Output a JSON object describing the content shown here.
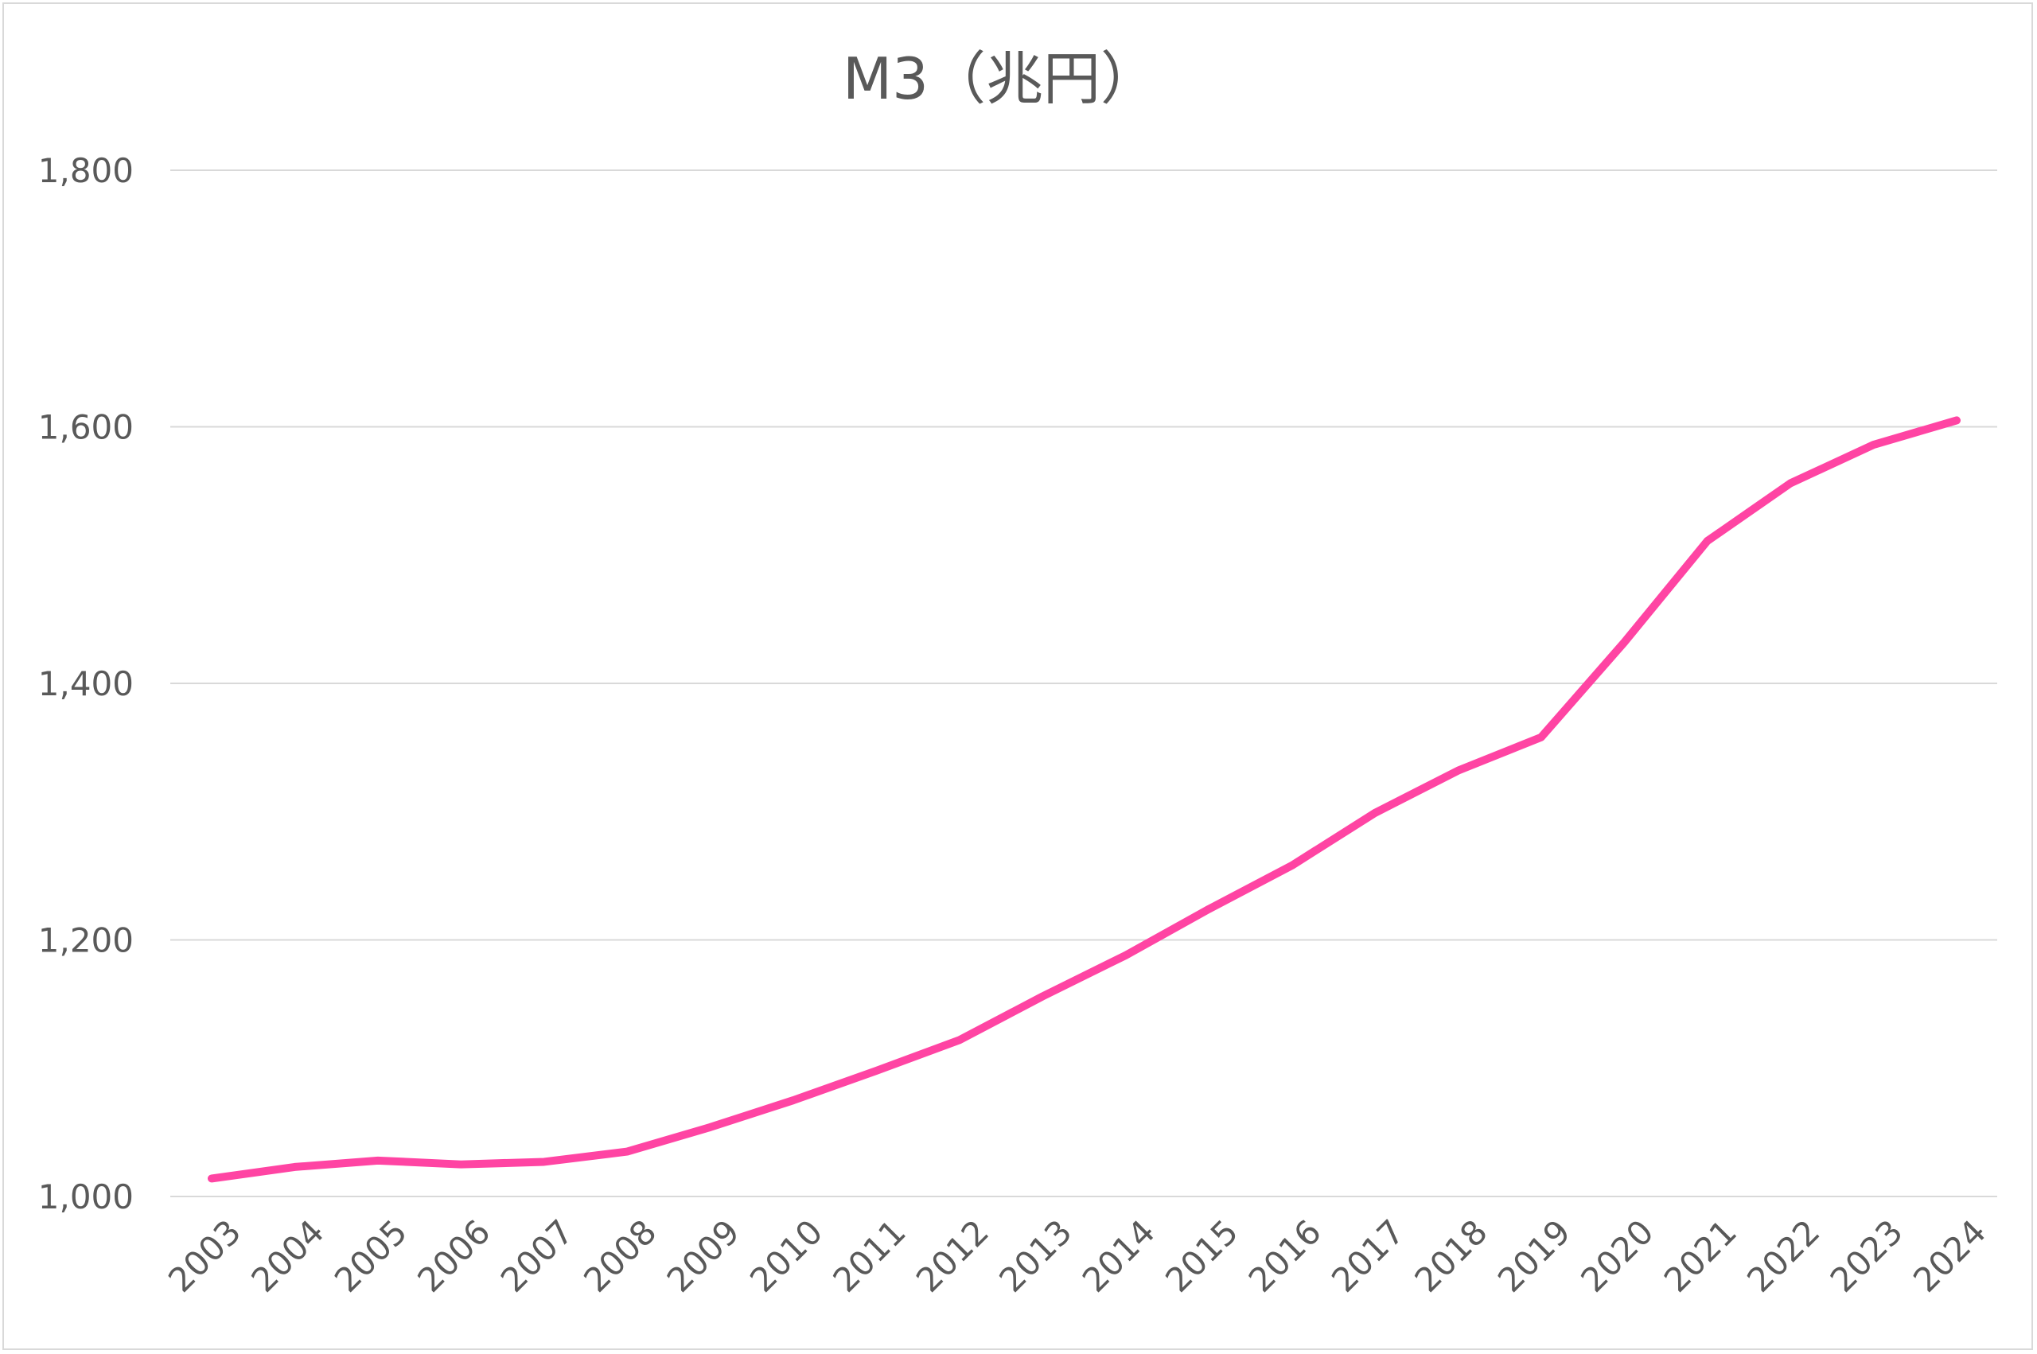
{
  "chart_data": {
    "type": "line",
    "title": "M3（兆円）",
    "xlabel": "",
    "ylabel": "",
    "categories": [
      "2003",
      "2004",
      "2005",
      "2006",
      "2007",
      "2008",
      "2009",
      "2010",
      "2011",
      "2012",
      "2013",
      "2014",
      "2015",
      "2016",
      "2017",
      "2018",
      "2019",
      "2020",
      "2021",
      "2022",
      "2023",
      "2024"
    ],
    "series": [
      {
        "values": [
          1014,
          1023,
          1028,
          1025,
          1027,
          1035,
          1054,
          1075,
          1098,
          1122,
          1156,
          1188,
          1224,
          1258,
          1299,
          1332,
          1358,
          1432,
          1511,
          1556,
          1586,
          1605
        ]
      }
    ],
    "ylim": [
      1000,
      1800
    ],
    "yticks": [
      1000,
      1200,
      1400,
      1600,
      1800
    ],
    "ytick_labels": [
      "1,000",
      "1,200",
      "1,400",
      "1,600",
      "1,800"
    ],
    "grid": true,
    "legend": "none",
    "colors": {
      "line": "#ff44a3",
      "grid": "#d9d9d9",
      "text": "#595959"
    }
  }
}
